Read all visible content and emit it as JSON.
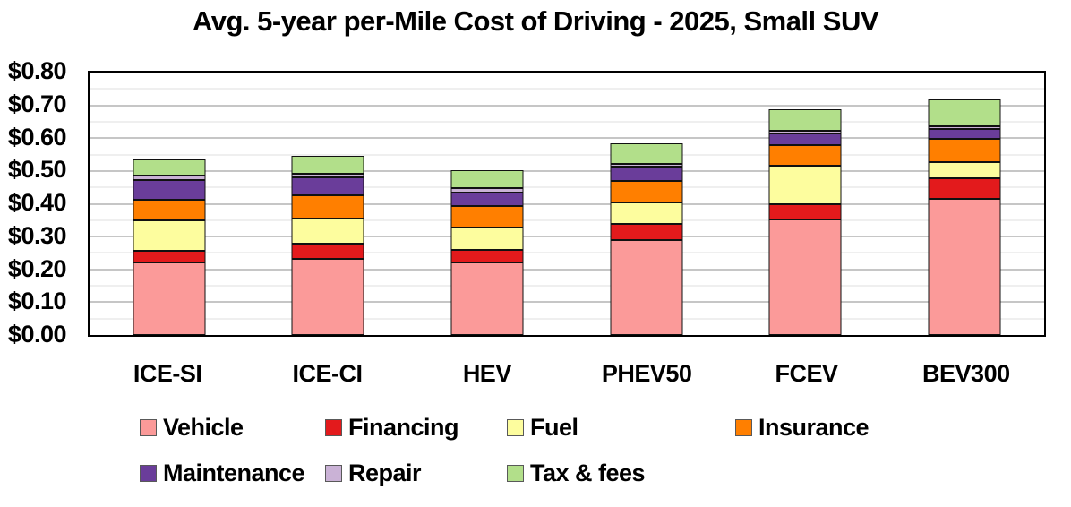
{
  "chart_data": {
    "type": "bar",
    "stacked": true,
    "title": "Avg. 5-year per-Mile Cost of Driving - 2025, Small SUV",
    "categories": [
      "ICE-SI",
      "ICE-CI",
      "HEV",
      "PHEV50",
      "FCEV",
      "BEV300"
    ],
    "series": [
      {
        "name": "Vehicle",
        "color": "#FB9A99",
        "values": [
          0.22,
          0.2325,
          0.22,
          0.29,
          0.3525,
          0.415
        ]
      },
      {
        "name": "Financing",
        "color": "#E31A1C",
        "values": [
          0.0375,
          0.045,
          0.04,
          0.0475,
          0.0475,
          0.0625
        ]
      },
      {
        "name": "Fuel",
        "color": "#FDFD9E",
        "values": [
          0.0925,
          0.0775,
          0.0675,
          0.0675,
          0.115,
          0.05
        ]
      },
      {
        "name": "Insurance",
        "color": "#FF7F00",
        "values": [
          0.0625,
          0.07,
          0.065,
          0.065,
          0.065,
          0.07
        ]
      },
      {
        "name": "Maintenance",
        "color": "#6A3D9A",
        "values": [
          0.06,
          0.055,
          0.0425,
          0.0425,
          0.035,
          0.03
        ]
      },
      {
        "name": "Repair",
        "color": "#CAB2D6",
        "values": [
          0.0125,
          0.0125,
          0.0125,
          0.01,
          0.0075,
          0.01
        ]
      },
      {
        "name": "Tax & fees",
        "color": "#B2DF8A",
        "values": [
          0.05,
          0.0525,
          0.055,
          0.0625,
          0.065,
          0.08
        ]
      }
    ],
    "totals": [
      0.535,
      0.545,
      0.5025,
      0.585,
      0.6875,
      0.7175
    ],
    "ylim": [
      0,
      0.8
    ],
    "y_ticks": [
      {
        "label": "$0.00",
        "value": 0.0
      },
      {
        "label": "$0.10",
        "value": 0.1
      },
      {
        "label": "$0.20",
        "value": 0.2
      },
      {
        "label": "$0.30",
        "value": 0.3
      },
      {
        "label": "$0.40",
        "value": 0.4
      },
      {
        "label": "$0.50",
        "value": 0.5
      },
      {
        "label": "$0.60",
        "value": 0.6
      },
      {
        "label": "$0.70",
        "value": 0.7
      },
      {
        "label": "$0.80",
        "value": 0.8
      }
    ],
    "grid": {
      "minor_interval": 0.05,
      "major_interval": 0.1,
      "major_color": "#c6c6c6",
      "minor_color": "#efefef"
    },
    "legend_rows": [
      [
        "Vehicle",
        "Financing",
        "Fuel",
        "Insurance"
      ],
      [
        "Maintenance",
        "Repair",
        "Tax & fees"
      ]
    ],
    "legend_position": "bottom"
  }
}
